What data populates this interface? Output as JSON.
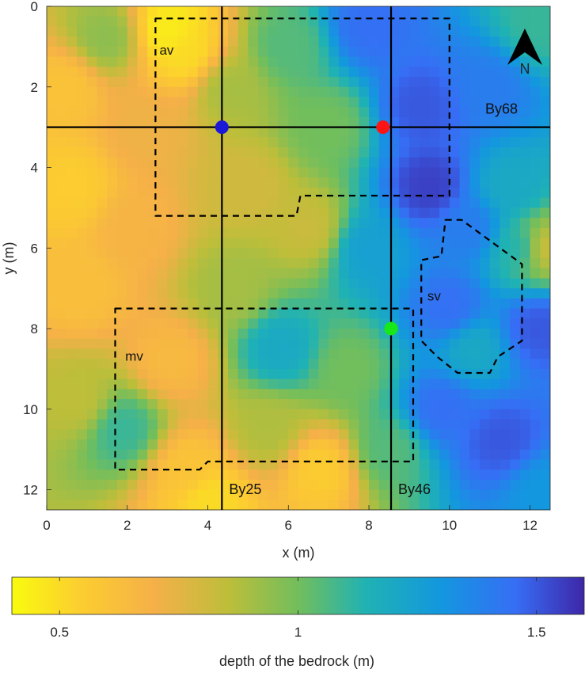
{
  "chart_data": {
    "type": "heatmap",
    "xlabel": "x (m)",
    "ylabel": "y (m)",
    "xlim": [
      0,
      12.5
    ],
    "ylim": [
      0,
      12.5
    ],
    "y_reversed": true,
    "x_ticks": [
      "0",
      "2",
      "4",
      "6",
      "8",
      "10",
      "12"
    ],
    "y_ticks": [
      "0",
      "2",
      "4",
      "6",
      "8",
      "10",
      "12"
    ],
    "colorbar": {
      "label": "depth of the bedrock (m)",
      "range": [
        0.4,
        1.6
      ],
      "ticks": [
        "0.5",
        "1",
        "1.5"
      ],
      "colormap": "parula"
    },
    "north_arrow_label": "N",
    "profiles": [
      {
        "name": "By68",
        "orientation": "horizontal",
        "y": 3
      },
      {
        "name": "By25",
        "orientation": "vertical",
        "x": 4.35
      },
      {
        "name": "By46",
        "orientation": "vertical",
        "x": 8.55
      }
    ],
    "points": [
      {
        "x": 4.35,
        "y": 3.0,
        "color": "#1a1ad6"
      },
      {
        "x": 8.35,
        "y": 3.0,
        "color": "#ff1414"
      },
      {
        "x": 8.55,
        "y": 8.0,
        "color": "#17e817"
      }
    ],
    "zones": [
      {
        "label": "av",
        "polygon": [
          [
            2.7,
            0.3
          ],
          [
            10.0,
            0.3
          ],
          [
            10.0,
            4.7
          ],
          [
            6.3,
            4.7
          ],
          [
            6.2,
            5.2
          ],
          [
            2.7,
            5.2
          ]
        ]
      },
      {
        "label": "mv",
        "polygon": [
          [
            1.7,
            7.5
          ],
          [
            9.1,
            7.5
          ],
          [
            9.1,
            11.3
          ],
          [
            4.0,
            11.3
          ],
          [
            3.8,
            11.5
          ],
          [
            1.7,
            11.5
          ]
        ]
      },
      {
        "label": "sv",
        "polygon": [
          [
            9.9,
            5.3
          ],
          [
            10.3,
            5.3
          ],
          [
            11.8,
            6.4
          ],
          [
            11.8,
            8.3
          ],
          [
            11.2,
            8.7
          ],
          [
            11.0,
            9.1
          ],
          [
            10.2,
            9.1
          ],
          [
            9.7,
            8.7
          ],
          [
            9.3,
            8.3
          ],
          [
            9.3,
            6.3
          ],
          [
            9.8,
            6.2
          ]
        ]
      }
    ],
    "depth_field_samples": [
      {
        "x": 0.5,
        "y": 2.0,
        "depth": 0.6
      },
      {
        "x": 0.6,
        "y": 4.5,
        "depth": 0.55
      },
      {
        "x": 0.8,
        "y": 7.0,
        "depth": 0.62
      },
      {
        "x": 0.8,
        "y": 9.8,
        "depth": 0.85
      },
      {
        "x": 1.5,
        "y": 0.8,
        "depth": 0.95
      },
      {
        "x": 1.9,
        "y": 10.5,
        "depth": 1.1
      },
      {
        "x": 2.2,
        "y": 5.5,
        "depth": 0.68
      },
      {
        "x": 2.5,
        "y": 3.0,
        "depth": 0.72
      },
      {
        "x": 3.0,
        "y": 0.6,
        "depth": 0.45
      },
      {
        "x": 3.1,
        "y": 8.8,
        "depth": 0.65
      },
      {
        "x": 3.5,
        "y": 1.2,
        "depth": 0.5
      },
      {
        "x": 3.5,
        "y": 11.5,
        "depth": 0.6
      },
      {
        "x": 4.0,
        "y": 12.2,
        "depth": 0.5
      },
      {
        "x": 4.5,
        "y": 2.0,
        "depth": 0.9
      },
      {
        "x": 4.6,
        "y": 7.0,
        "depth": 0.9
      },
      {
        "x": 5.0,
        "y": 4.5,
        "depth": 0.8
      },
      {
        "x": 5.5,
        "y": 10.5,
        "depth": 0.88
      },
      {
        "x": 5.8,
        "y": 8.5,
        "depth": 1.2
      },
      {
        "x": 6.0,
        "y": 1.0,
        "depth": 1.05
      },
      {
        "x": 6.5,
        "y": 5.5,
        "depth": 0.82
      },
      {
        "x": 6.8,
        "y": 11.5,
        "depth": 0.55
      },
      {
        "x": 7.0,
        "y": 3.0,
        "depth": 1.0
      },
      {
        "x": 7.5,
        "y": 9.0,
        "depth": 1.0
      },
      {
        "x": 8.0,
        "y": 0.5,
        "depth": 1.45
      },
      {
        "x": 8.0,
        "y": 6.0,
        "depth": 1.25
      },
      {
        "x": 8.5,
        "y": 11.0,
        "depth": 1.05
      },
      {
        "x": 9.3,
        "y": 2.5,
        "depth": 1.5
      },
      {
        "x": 9.5,
        "y": 4.5,
        "depth": 1.55
      },
      {
        "x": 9.8,
        "y": 10.0,
        "depth": 1.45
      },
      {
        "x": 10.0,
        "y": 7.5,
        "depth": 1.45
      },
      {
        "x": 10.5,
        "y": 5.5,
        "depth": 1.4
      },
      {
        "x": 10.6,
        "y": 8.5,
        "depth": 1.2
      },
      {
        "x": 11.0,
        "y": 2.0,
        "depth": 1.4
      },
      {
        "x": 11.3,
        "y": 10.8,
        "depth": 1.5
      },
      {
        "x": 11.5,
        "y": 4.5,
        "depth": 1.2
      },
      {
        "x": 11.8,
        "y": 6.0,
        "depth": 1.15
      },
      {
        "x": 12.2,
        "y": 8.0,
        "depth": 1.5
      },
      {
        "x": 12.2,
        "y": 0.5,
        "depth": 1.1
      },
      {
        "x": 12.3,
        "y": 6.0,
        "depth": 0.8
      },
      {
        "x": 12.3,
        "y": 12.0,
        "depth": 1.3
      }
    ]
  }
}
